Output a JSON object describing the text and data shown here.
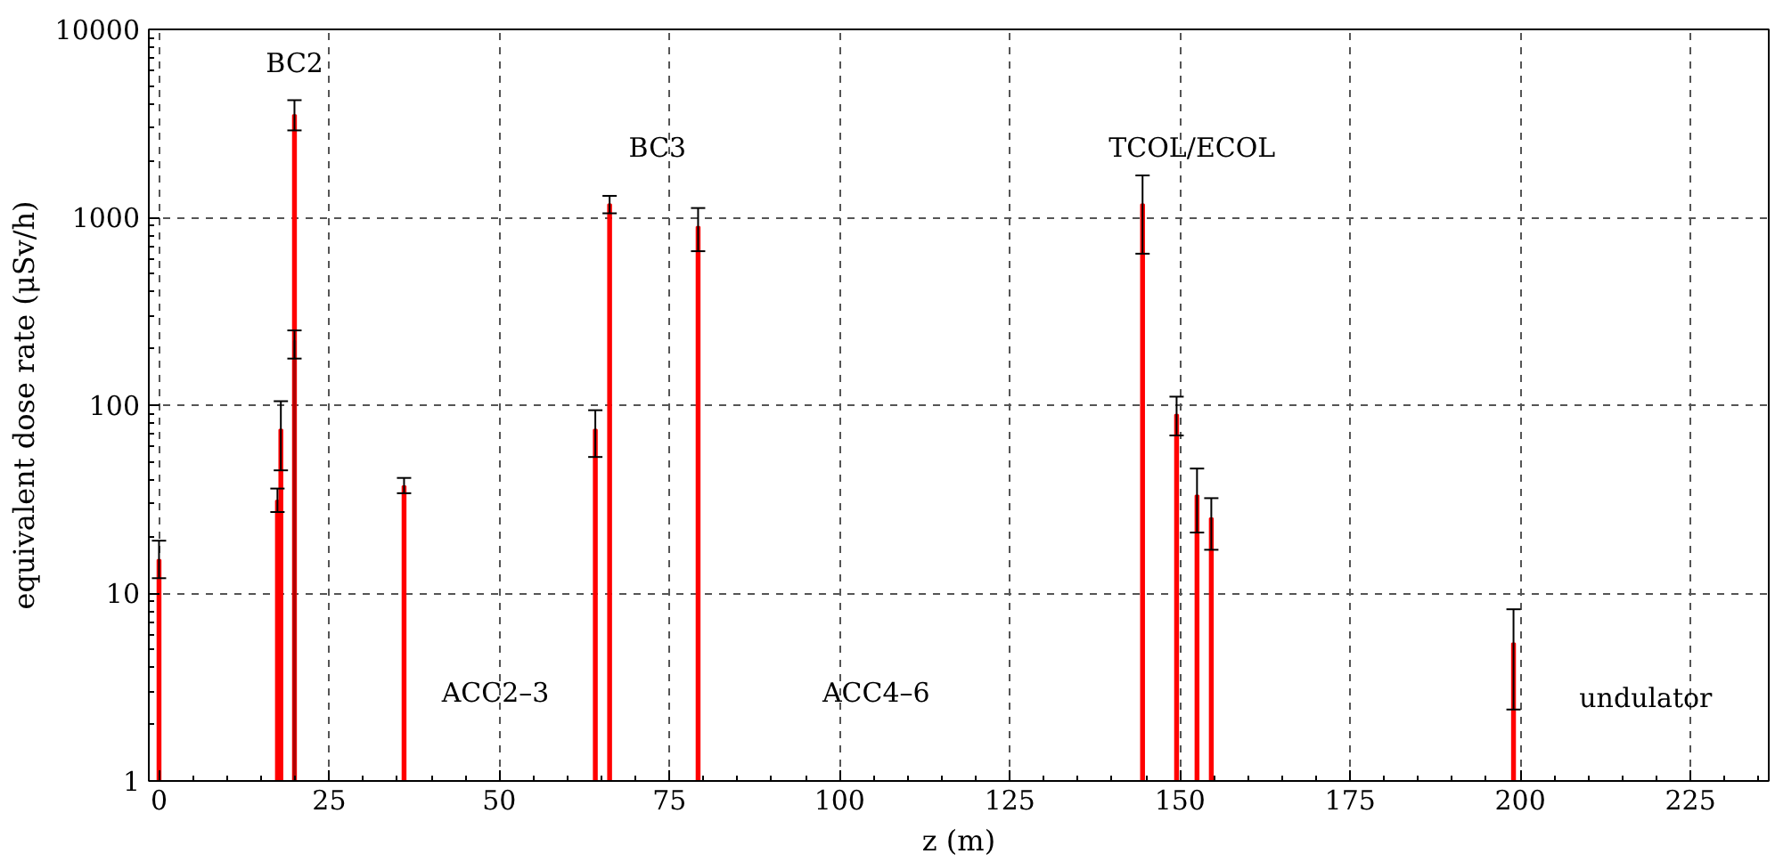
{
  "chart_data": {
    "type": "bar",
    "xlabel": "z (m)",
    "ylabel": "equivalent dose rate (μSv/h)",
    "series": [
      {
        "color": "#ff0000",
        "x": [
          0,
          17.4,
          17.9,
          19.9,
          36.0,
          64.1,
          66.2,
          79.2,
          144.5,
          149.5,
          152.5,
          154.6,
          199.0
        ],
        "values": [
          15,
          31,
          74,
          3500,
          37,
          74,
          1170,
          890,
          1170,
          89,
          33,
          25,
          5.4
        ],
        "errors": [
          [
            12,
            19
          ],
          [
            27,
            36
          ],
          [
            45,
            105
          ],
          [
            2900,
            4200
          ],
          [
            34,
            41
          ],
          [
            53,
            94
          ],
          [
            1050,
            1300
          ],
          [
            660,
            1120
          ],
          [
            640,
            1670
          ],
          [
            69,
            111
          ],
          [
            21,
            46
          ],
          [
            17,
            32
          ],
          [
            2.4,
            8.2
          ]
        ]
      },
      {
        "color": "#ff0000",
        "x": [
          19.9
        ],
        "values": [
          220
        ],
        "errors": [
          [
            177,
            250
          ]
        ]
      }
    ],
    "log": "y",
    "xlim": [
      -1.5,
      236.5
    ],
    "ylim": [
      1,
      10000
    ],
    "xticks": [
      0,
      25,
      50,
      75,
      100,
      125,
      150,
      175,
      200,
      225
    ],
    "yticks": [
      1,
      10,
      100,
      1000,
      10000
    ],
    "grid": true,
    "annotations": [
      "BC2",
      "BC3",
      "TCOL/ECOL",
      "ACC2–3",
      "ACC4–6",
      "undulator"
    ]
  }
}
